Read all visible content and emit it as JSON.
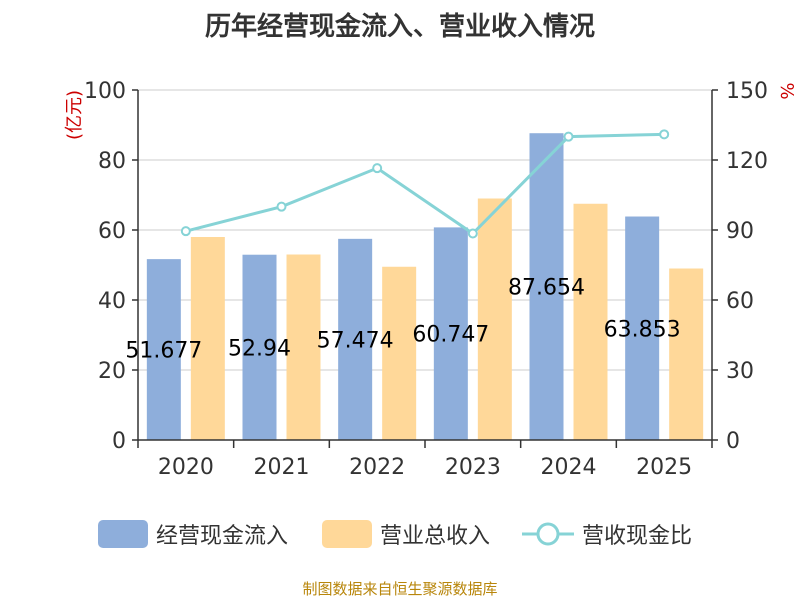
{
  "chart_data": {
    "type": "bar",
    "title": "历年经营现金流入、营业收入情况",
    "categories": [
      "2020",
      "2021",
      "2022",
      "2023",
      "2024",
      "2025"
    ],
    "y_left": {
      "label": "(亿元)",
      "ticks": [
        "0",
        "20",
        "40",
        "60",
        "80",
        "100"
      ],
      "range": [
        0,
        100
      ]
    },
    "y_right": {
      "label": "%",
      "ticks": [
        "0",
        "30",
        "60",
        "90",
        "120",
        "150"
      ],
      "range": [
        0,
        150
      ]
    },
    "series": [
      {
        "name": "经营现金流入",
        "type": "bar",
        "axis": "left",
        "color": "#8eaedb",
        "values": [
          51.677,
          52.94,
          57.474,
          60.747,
          87.654,
          63.853
        ],
        "labels": [
          "51.677",
          "52.94",
          "57.474",
          "60.747",
          "87.654",
          "63.853"
        ]
      },
      {
        "name": "营业总收入",
        "type": "bar",
        "axis": "left",
        "color": "#ffd899",
        "values": [
          58,
          53,
          49.5,
          69,
          67.5,
          49
        ]
      },
      {
        "name": "营收现金比",
        "type": "line",
        "axis": "right",
        "color": "#86d3d6",
        "values": [
          89.5,
          100,
          116.5,
          88.5,
          130,
          131
        ]
      }
    ],
    "legend_position": "bottom",
    "grid": true
  },
  "source_note": "制图数据来自恒生聚源数据库"
}
